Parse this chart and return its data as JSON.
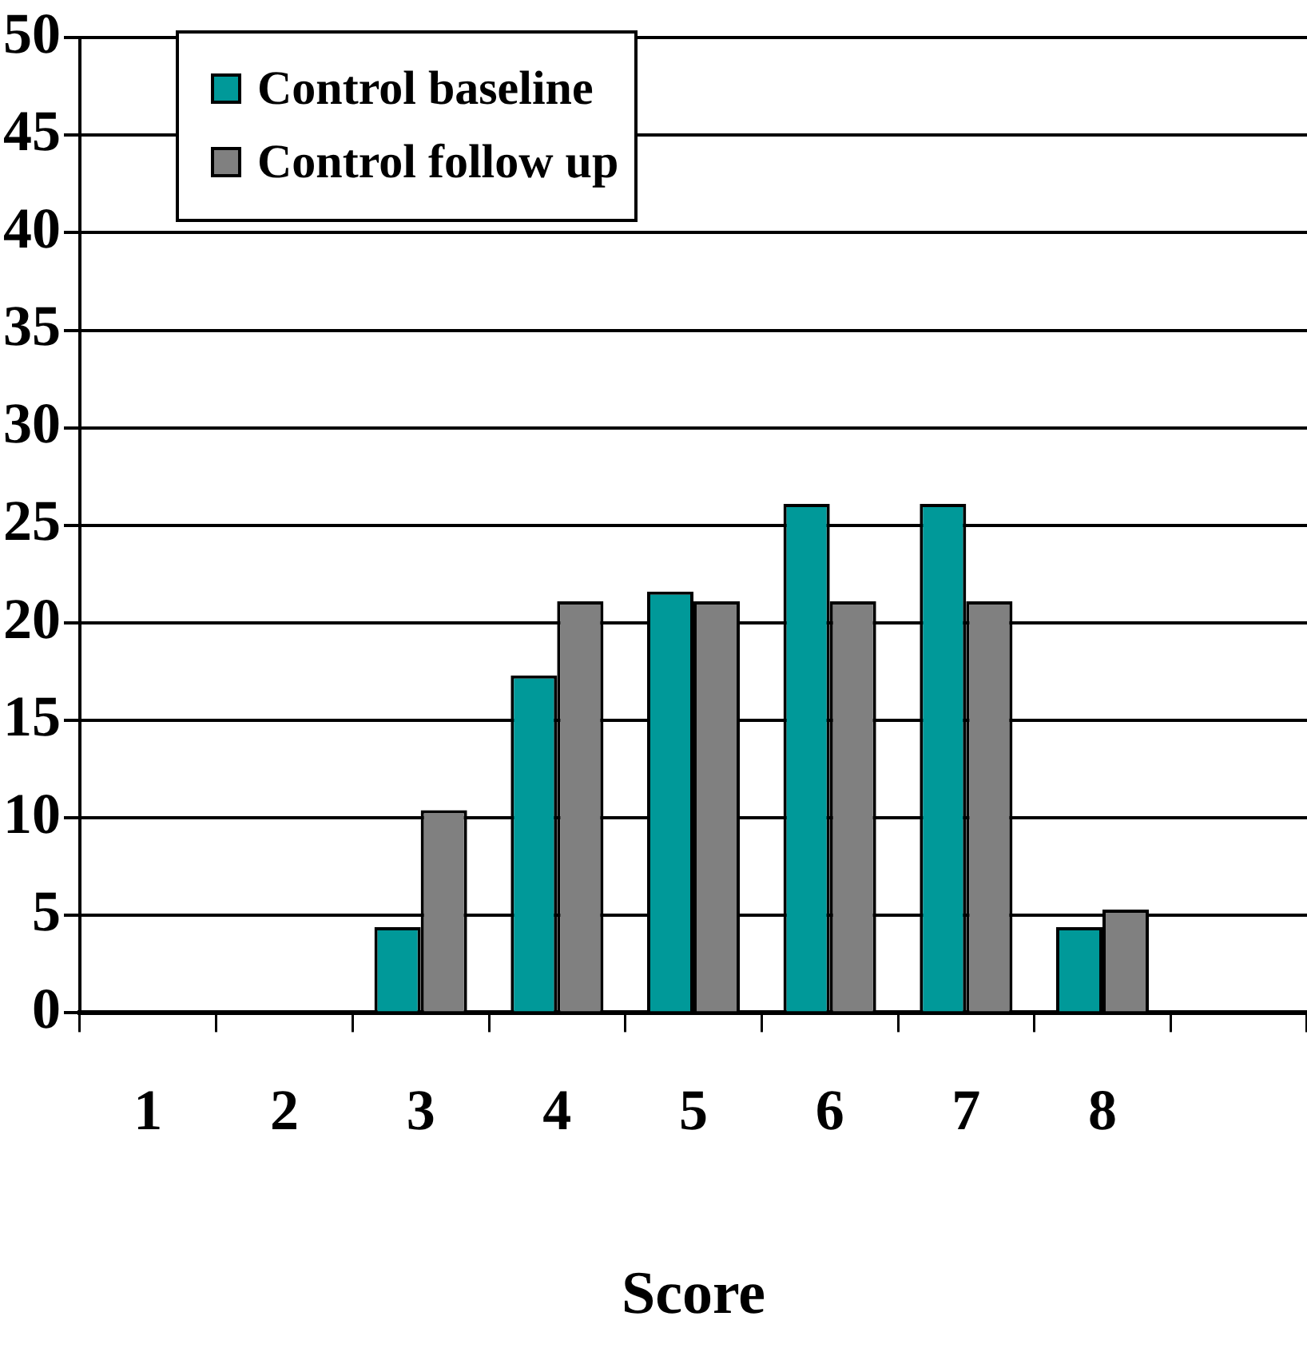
{
  "chart_data": {
    "type": "bar",
    "xlabel": "Score",
    "categories": [
      "1",
      "2",
      "3",
      "4",
      "5",
      "6",
      "7",
      "8",
      null
    ],
    "series": [
      {
        "name": "Control baseline",
        "color": "#009999",
        "values": [
          0,
          0,
          4.4,
          17.3,
          21.6,
          26.1,
          26.1,
          4.4,
          0
        ]
      },
      {
        "name": "Control follow up",
        "color": "#808080",
        "values": [
          0,
          0,
          10.4,
          21.1,
          21.1,
          21.1,
          21.1,
          5.3,
          0
        ]
      }
    ],
    "ylim": [
      0,
      50
    ],
    "yticks": [
      0,
      5,
      10,
      15,
      20,
      25,
      30,
      35,
      40,
      45,
      50
    ],
    "grid": "y",
    "legend": "top left"
  }
}
